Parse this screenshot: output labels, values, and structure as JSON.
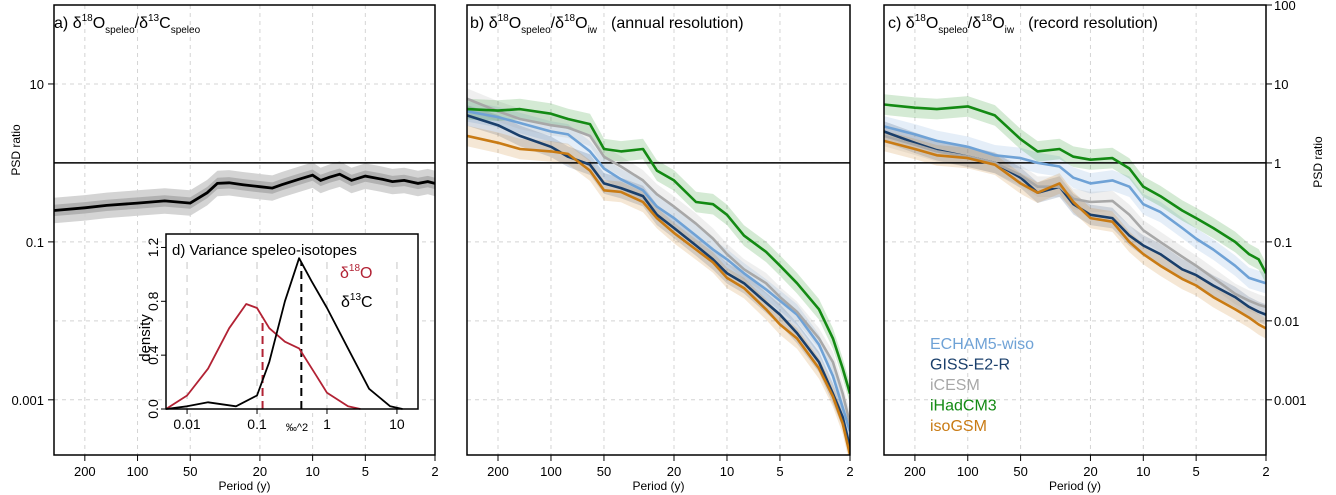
{
  "figure": {
    "colors": {
      "ECHAM5-wiso": "#6fa2d6",
      "GISS-E2-R": "#1a3f6b",
      "iCESM": "#a8a8a8",
      "iHadCM3": "#138a13",
      "isoGSM": "#c97b14",
      "d18O": "#b22234",
      "d13C": "#000000",
      "ratio_line": "#000000"
    },
    "right_axis_label": "PSD ratio"
  },
  "panels": {
    "a": {
      "prefix": "a)",
      "base1": "δ",
      "sup1": "18",
      "base2": "O",
      "sub1": "speleo",
      "sep": "/",
      "base3": "δ",
      "sup2": "13",
      "base4": "C",
      "sub2": "speleo",
      "suffix": ""
    },
    "b": {
      "prefix": "b)",
      "base1": "δ",
      "sup1": "18",
      "base2": "O",
      "sub1": "speleo",
      "sep": "/",
      "base3": "δ",
      "sup2": "18",
      "base4": "O",
      "sub2": "iw",
      "suffix": "(annual resolution)"
    },
    "c": {
      "prefix": "c)",
      "base1": "δ",
      "sup1": "18",
      "base2": "O",
      "sub1": "speleo",
      "sep": "/",
      "base3": "δ",
      "sup2": "18",
      "base4": "O",
      "sub2": "iw",
      "suffix": "(record resolution)"
    },
    "d": {
      "title": "d) Variance speleo-isotopes",
      "ylabel": "density",
      "xlabel": "‰^2",
      "xticks": [
        "0.01",
        "0.1",
        "1",
        "10"
      ],
      "yticks": [
        "0.0",
        "0.4",
        "0.8",
        "1.2"
      ],
      "legend_d18O": {
        "base1": "δ",
        "sup": "18",
        "base2": "O"
      },
      "legend_d13C": {
        "base1": "δ",
        "sup": "13",
        "base2": "C"
      }
    }
  },
  "chart_data": [
    {
      "panel": "a",
      "type": "line",
      "title": "a) δ18Ospeleo/δ13Cspeleo",
      "xlabel": "Period (y)",
      "ylabel": "PSD ratio",
      "x_scale": "log",
      "x_reversed": true,
      "xlim": [
        300,
        2
      ],
      "y_scale": "log",
      "ylim": [
        0.0002,
        100
      ],
      "xticks": [
        "200",
        "100",
        "50",
        "20",
        "10",
        "5",
        "2"
      ],
      "yticks": [
        "10",
        "0.1",
        "0.001"
      ],
      "reference_line": 1,
      "grid": true,
      "series": [
        {
          "x": [
            300,
            200,
            150,
            100,
            70,
            50,
            40,
            35,
            30,
            25,
            20,
            17,
            15,
            12,
            10,
            9,
            8,
            7,
            6,
            5,
            4,
            3.5,
            3,
            2.5,
            2.2,
            2
          ],
          "y": [
            0.25,
            0.27,
            0.29,
            0.31,
            0.33,
            0.31,
            0.42,
            0.55,
            0.56,
            0.53,
            0.5,
            0.48,
            0.53,
            0.62,
            0.7,
            0.6,
            0.66,
            0.72,
            0.6,
            0.68,
            0.62,
            0.58,
            0.6,
            0.55,
            0.58,
            0.55
          ]
        }
      ]
    },
    {
      "panel": "b",
      "type": "line",
      "title": "b) δ18Ospeleo/δ18Oiw (annual resolution)",
      "xlabel": "Period (y)",
      "x_scale": "log",
      "x_reversed": true,
      "xlim": [
        300,
        2
      ],
      "y_scale": "log",
      "ylim": [
        0.0002,
        100
      ],
      "xticks": [
        "200",
        "100",
        "50",
        "20",
        "10",
        "5",
        "2"
      ],
      "reference_line": 1,
      "grid": true,
      "series": [
        {
          "name": "ECHAM5-wiso",
          "x": [
            300,
            200,
            150,
            100,
            80,
            60,
            50,
            40,
            30,
            25,
            20,
            15,
            12,
            10,
            8,
            6,
            5,
            4,
            3,
            2.5,
            2.2,
            2
          ],
          "y": [
            4.5,
            3.8,
            3.2,
            2.5,
            2.3,
            1.4,
            0.85,
            0.62,
            0.45,
            0.28,
            0.2,
            0.12,
            0.08,
            0.06,
            0.04,
            0.025,
            0.018,
            0.012,
            0.005,
            0.002,
            0.0008,
            0.0004
          ]
        },
        {
          "name": "GISS-E2-R",
          "x": [
            300,
            200,
            150,
            100,
            80,
            60,
            50,
            40,
            30,
            25,
            20,
            15,
            12,
            10,
            8,
            6,
            5,
            4,
            3,
            2.5,
            2.2,
            2
          ],
          "y": [
            4.0,
            3.0,
            2.2,
            1.6,
            1.2,
            0.95,
            0.55,
            0.48,
            0.38,
            0.22,
            0.15,
            0.09,
            0.06,
            0.04,
            0.03,
            0.017,
            0.012,
            0.007,
            0.003,
            0.0012,
            0.0006,
            0.00025
          ]
        },
        {
          "name": "iCESM",
          "x": [
            300,
            200,
            150,
            100,
            80,
            60,
            50,
            40,
            30,
            25,
            20,
            15,
            12,
            10,
            8,
            6,
            5,
            4,
            3,
            2.5,
            2.2,
            2
          ],
          "y": [
            6.5,
            4.5,
            3.6,
            3.0,
            2.8,
            2.2,
            1.2,
            0.9,
            0.6,
            0.4,
            0.28,
            0.17,
            0.11,
            0.07,
            0.045,
            0.03,
            0.02,
            0.013,
            0.006,
            0.003,
            0.0012,
            0.0005
          ]
        },
        {
          "name": "iHadCM3",
          "x": [
            300,
            200,
            150,
            100,
            80,
            60,
            50,
            40,
            30,
            25,
            20,
            15,
            12,
            10,
            8,
            6,
            5,
            4,
            3,
            2.5,
            2.2,
            2
          ],
          "y": [
            4.8,
            4.6,
            4.8,
            4.2,
            3.6,
            3.1,
            1.5,
            1.4,
            1.5,
            0.8,
            0.6,
            0.32,
            0.3,
            0.22,
            0.12,
            0.075,
            0.05,
            0.03,
            0.014,
            0.006,
            0.0025,
            0.0012
          ]
        },
        {
          "name": "isoGSM",
          "x": [
            300,
            200,
            150,
            100,
            80,
            60,
            50,
            40,
            30,
            25,
            20,
            15,
            12,
            10,
            8,
            6,
            5,
            4,
            3,
            2.5,
            2.2,
            2
          ],
          "y": [
            2.2,
            1.8,
            1.5,
            1.4,
            1.3,
            0.8,
            0.45,
            0.43,
            0.32,
            0.2,
            0.13,
            0.08,
            0.055,
            0.035,
            0.026,
            0.014,
            0.009,
            0.006,
            0.0025,
            0.0011,
            0.0005,
            0.0002
          ]
        }
      ]
    },
    {
      "panel": "c",
      "type": "line",
      "title": "c) δ18Ospeleo/δ18Oiw (record resolution)",
      "xlabel": "Period (y)",
      "ylabel": "PSD ratio",
      "x_scale": "log",
      "x_reversed": true,
      "xlim": [
        300,
        2
      ],
      "y_scale": "log",
      "ylim": [
        0.0002,
        100
      ],
      "xticks": [
        "200",
        "100",
        "50",
        "20",
        "10",
        "5",
        "2"
      ],
      "yticks": [
        "100",
        "10",
        "1",
        "0.1",
        "0.01",
        "0.001"
      ],
      "reference_line": 1,
      "grid": true,
      "legend": {
        "position": "bottom-left",
        "entries": [
          "ECHAM5-wiso",
          "GISS-E2-R",
          "iCESM",
          "iHadCM3",
          "isoGSM"
        ]
      },
      "series": [
        {
          "name": "ECHAM5-wiso",
          "x": [
            300,
            200,
            150,
            100,
            70,
            50,
            40,
            30,
            25,
            20,
            15,
            12,
            10,
            8,
            6,
            5,
            4,
            3,
            2.5,
            2.2,
            2
          ],
          "y": [
            2.9,
            2.3,
            1.9,
            1.6,
            1.25,
            1.15,
            1.0,
            0.9,
            0.65,
            0.55,
            0.6,
            0.5,
            0.3,
            0.24,
            0.15,
            0.11,
            0.08,
            0.05,
            0.035,
            0.032,
            0.03
          ]
        },
        {
          "name": "GISS-E2-R",
          "x": [
            300,
            200,
            150,
            100,
            70,
            50,
            40,
            30,
            25,
            20,
            15,
            12,
            10,
            8,
            6,
            5,
            4,
            3,
            2.5,
            2.2,
            2
          ],
          "y": [
            2.5,
            1.8,
            1.45,
            1.2,
            1.0,
            0.65,
            0.42,
            0.5,
            0.3,
            0.22,
            0.2,
            0.12,
            0.09,
            0.07,
            0.045,
            0.038,
            0.028,
            0.02,
            0.015,
            0.013,
            0.012
          ]
        },
        {
          "name": "iCESM",
          "x": [
            300,
            200,
            150,
            100,
            70,
            50,
            40,
            30,
            25,
            20,
            15,
            12,
            10,
            8,
            6,
            5,
            4,
            3,
            2.5,
            2.2,
            2
          ],
          "y": [
            2.2,
            1.7,
            1.4,
            1.2,
            1.0,
            0.7,
            0.5,
            0.5,
            0.35,
            0.32,
            0.33,
            0.22,
            0.14,
            0.1,
            0.065,
            0.05,
            0.035,
            0.022,
            0.018,
            0.016,
            0.015
          ]
        },
        {
          "name": "iHadCM3",
          "x": [
            300,
            200,
            150,
            100,
            70,
            50,
            40,
            30,
            25,
            20,
            15,
            12,
            10,
            8,
            6,
            5,
            4,
            3,
            2.5,
            2.2,
            2
          ],
          "y": [
            5.5,
            5.0,
            4.8,
            5.2,
            4.0,
            2.0,
            1.4,
            1.5,
            1.2,
            1.1,
            1.15,
            0.85,
            0.5,
            0.38,
            0.25,
            0.2,
            0.15,
            0.1,
            0.07,
            0.06,
            0.04
          ]
        },
        {
          "name": "isoGSM",
          "x": [
            300,
            200,
            150,
            100,
            70,
            50,
            40,
            30,
            25,
            20,
            15,
            12,
            10,
            8,
            6,
            5,
            4,
            3,
            2.5,
            2.2,
            2
          ],
          "y": [
            1.9,
            1.5,
            1.25,
            1.15,
            0.95,
            0.55,
            0.42,
            0.55,
            0.32,
            0.2,
            0.18,
            0.1,
            0.07,
            0.05,
            0.034,
            0.028,
            0.02,
            0.014,
            0.011,
            0.009,
            0.008
          ]
        }
      ]
    },
    {
      "panel": "d",
      "type": "line",
      "title": "d) Variance speleo-isotopes",
      "xlabel": "‰^2",
      "ylabel": "density",
      "x_scale": "log",
      "xlim": [
        0.005,
        20
      ],
      "ylim": [
        0,
        1.3
      ],
      "xticks": [
        "0.01",
        "0.1",
        "1",
        "10"
      ],
      "yticks": [
        "0.0",
        "0.4",
        "0.8",
        "1.2"
      ],
      "series": [
        {
          "name": "δ18O",
          "x": [
            0.005,
            0.01,
            0.02,
            0.04,
            0.07,
            0.1,
            0.15,
            0.25,
            0.4,
            0.7,
            1,
            2,
            3
          ],
          "y": [
            0.0,
            0.1,
            0.3,
            0.6,
            0.78,
            0.75,
            0.6,
            0.5,
            0.45,
            0.25,
            0.12,
            0.02,
            0.0
          ]
        },
        {
          "name": "δ13C",
          "x": [
            0.005,
            0.01,
            0.02,
            0.05,
            0.1,
            0.15,
            0.25,
            0.4,
            0.6,
            1,
            2,
            4,
            8,
            12
          ],
          "y": [
            0.0,
            0.02,
            0.05,
            0.02,
            0.1,
            0.35,
            0.8,
            1.12,
            0.95,
            0.75,
            0.45,
            0.15,
            0.02,
            0.0
          ]
        }
      ],
      "markers": [
        {
          "series": "δ18O",
          "x": 0.12,
          "style": "dashed"
        },
        {
          "series": "δ13C",
          "x": 0.43,
          "style": "dashed"
        }
      ]
    }
  ]
}
